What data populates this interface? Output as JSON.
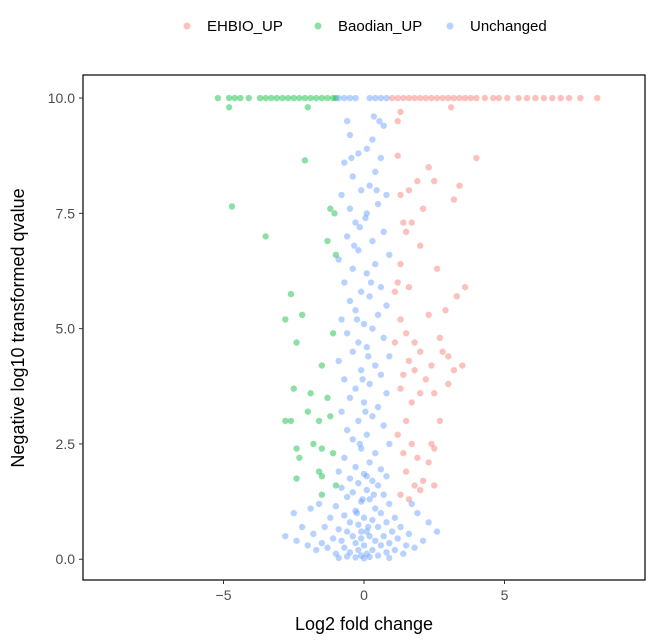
{
  "chart_data": {
    "type": "scatter",
    "title": "",
    "xlabel": "Log2 fold change",
    "ylabel": "Negative log10 transformed qvalue",
    "xlim": [
      -10,
      10
    ],
    "ylim": [
      -0.45,
      10.5
    ],
    "xticks": [
      -5,
      0,
      5
    ],
    "xtick_labels": [
      "−5",
      "0",
      "5"
    ],
    "yticks": [
      0,
      2.5,
      5,
      7.5,
      10
    ],
    "ytick_labels": [
      "0.0",
      "2.5",
      "5.0",
      "7.5",
      "10.0"
    ],
    "grid": false,
    "legend_position": "top",
    "series": [
      {
        "name": "EHBIO_UP",
        "color": "#F8766D",
        "points": [
          [
            1.0,
            10
          ],
          [
            1.2,
            10
          ],
          [
            1.4,
            10
          ],
          [
            1.6,
            10
          ],
          [
            1.8,
            10
          ],
          [
            2.0,
            10
          ],
          [
            2.2,
            10
          ],
          [
            2.4,
            10
          ],
          [
            2.6,
            10
          ],
          [
            2.8,
            10
          ],
          [
            3.0,
            10
          ],
          [
            3.2,
            10
          ],
          [
            3.4,
            10
          ],
          [
            3.6,
            10
          ],
          [
            3.8,
            10
          ],
          [
            4.0,
            10
          ],
          [
            4.3,
            10
          ],
          [
            4.6,
            10
          ],
          [
            4.8,
            10
          ],
          [
            5.1,
            10
          ],
          [
            5.5,
            10
          ],
          [
            5.8,
            10
          ],
          [
            6.1,
            10
          ],
          [
            6.4,
            10
          ],
          [
            6.7,
            10
          ],
          [
            7.0,
            10
          ],
          [
            7.3,
            10
          ],
          [
            7.7,
            10
          ],
          [
            8.3,
            10
          ],
          [
            1.3,
            9.7
          ],
          [
            3.1,
            9.8
          ],
          [
            1.2,
            9.5
          ],
          [
            4,
            8.7
          ],
          [
            1.2,
            8.75
          ],
          [
            2.3,
            8.5
          ],
          [
            1.9,
            8.2
          ],
          [
            3.4,
            8.1
          ],
          [
            2.5,
            8.2
          ],
          [
            1.6,
            8.0
          ],
          [
            1.3,
            7.9
          ],
          [
            3.2,
            7.8
          ],
          [
            1.4,
            7.3
          ],
          [
            2.1,
            7.6
          ],
          [
            1.7,
            7.3
          ],
          [
            1.5,
            7.1
          ],
          [
            2,
            6.8
          ],
          [
            1.3,
            6.4
          ],
          [
            2.6,
            6.3
          ],
          [
            1.2,
            6.0
          ],
          [
            1.6,
            5.9
          ],
          [
            3.6,
            5.9
          ],
          [
            3.3,
            5.7
          ],
          [
            2.9,
            5.4
          ],
          [
            1.1,
            5.8
          ],
          [
            1.3,
            5.2
          ],
          [
            2.3,
            5.3
          ],
          [
            1.5,
            4.9
          ],
          [
            2.7,
            4.8
          ],
          [
            1.1,
            4.7
          ],
          [
            1.8,
            4.7
          ],
          [
            2.0,
            4.5
          ],
          [
            2.8,
            4.5
          ],
          [
            3.0,
            4.4
          ],
          [
            3.5,
            4.2
          ],
          [
            1.6,
            4.3
          ],
          [
            1.8,
            4.1
          ],
          [
            2.4,
            4.2
          ],
          [
            1.4,
            4.0
          ],
          [
            2.2,
            3.9
          ],
          [
            3.2,
            4.1
          ],
          [
            1.3,
            3.7
          ],
          [
            2.5,
            3.6
          ],
          [
            2.0,
            3.6
          ],
          [
            1.7,
            3.4
          ],
          [
            3.0,
            3.8
          ],
          [
            1.5,
            3.0
          ],
          [
            2.7,
            3.0
          ],
          [
            1.2,
            2.7
          ],
          [
            2.4,
            2.5
          ],
          [
            1.7,
            2.5
          ],
          [
            1.4,
            2.3
          ],
          [
            2.5,
            2.4
          ],
          [
            1.9,
            2.2
          ],
          [
            2.3,
            2.1
          ],
          [
            1.5,
            1.9
          ],
          [
            2.1,
            1.7
          ],
          [
            1.8,
            1.6
          ],
          [
            1.3,
            1.4
          ],
          [
            2.5,
            1.6
          ],
          [
            1.6,
            1.3
          ],
          [
            2.0,
            1.5
          ]
        ]
      },
      {
        "name": "Baodian_UP",
        "color": "#00BA38",
        "points": [
          [
            -5.2,
            10
          ],
          [
            -4.8,
            10
          ],
          [
            -4.6,
            10
          ],
          [
            -4.4,
            10
          ],
          [
            -4.1,
            10
          ],
          [
            -3.7,
            10
          ],
          [
            -3.5,
            10
          ],
          [
            -3.3,
            10
          ],
          [
            -3.1,
            10
          ],
          [
            -2.9,
            10
          ],
          [
            -2.7,
            10
          ],
          [
            -2.5,
            10
          ],
          [
            -2.3,
            10
          ],
          [
            -2.1,
            10
          ],
          [
            -1.9,
            10
          ],
          [
            -1.7,
            10
          ],
          [
            -1.5,
            10
          ],
          [
            -1.3,
            10
          ],
          [
            -1.1,
            10
          ],
          [
            -1.0,
            10
          ],
          [
            -4.8,
            9.8
          ],
          [
            -2,
            9.8
          ],
          [
            -2.1,
            8.65
          ],
          [
            -4.7,
            7.65
          ],
          [
            -3.5,
            7.0
          ],
          [
            -1.2,
            7.6
          ],
          [
            -1.05,
            7.5
          ],
          [
            -1,
            6.6
          ],
          [
            -1.3,
            6.9
          ],
          [
            -2.6,
            5.75
          ],
          [
            -2.2,
            5.3
          ],
          [
            -2.8,
            5.2
          ],
          [
            -2.4,
            4.7
          ],
          [
            -1.1,
            4.9
          ],
          [
            -1.5,
            4.2
          ],
          [
            -2.5,
            3.7
          ],
          [
            -1.9,
            3.6
          ],
          [
            -1.3,
            3.5
          ],
          [
            -2,
            3.2
          ],
          [
            -2.8,
            3.0
          ],
          [
            -2.6,
            3.0
          ],
          [
            -1.6,
            3.0
          ],
          [
            -1.2,
            3.1
          ],
          [
            -1.8,
            2.5
          ],
          [
            -2.4,
            2.4
          ],
          [
            -1.5,
            2.4
          ],
          [
            -2.3,
            2.2
          ],
          [
            -1.1,
            2.3
          ],
          [
            -2.4,
            1.75
          ],
          [
            -1.6,
            1.9
          ],
          [
            -1.5,
            1.8
          ],
          [
            -1.5,
            1.4
          ],
          [
            -1.0,
            1.6
          ]
        ]
      },
      {
        "name": "Unchanged",
        "color": "#619CFF",
        "points": [
          [
            -0.9,
            10
          ],
          [
            -0.7,
            10
          ],
          [
            -0.5,
            10
          ],
          [
            -0.3,
            10
          ],
          [
            0.2,
            10
          ],
          [
            0.4,
            10
          ],
          [
            0.6,
            10
          ],
          [
            0.8,
            10
          ],
          [
            0.35,
            9.6
          ],
          [
            0.55,
            9.5
          ],
          [
            0.7,
            9.4
          ],
          [
            -0.6,
            9.5
          ],
          [
            -0.5,
            9.2
          ],
          [
            0.3,
            9.1
          ],
          [
            0.1,
            8.9
          ],
          [
            -0.2,
            8.8
          ],
          [
            0.6,
            8.7
          ],
          [
            -0.7,
            8.6
          ],
          [
            0.4,
            8.4
          ],
          [
            -0.4,
            8.3
          ],
          [
            0.2,
            8.1
          ],
          [
            -0.1,
            8.0
          ],
          [
            0.8,
            7.9
          ],
          [
            -0.8,
            7.9
          ],
          [
            0.5,
            7.7
          ],
          [
            -0.5,
            7.6
          ],
          [
            0.1,
            7.5
          ],
          [
            -0.3,
            7.3
          ],
          [
            -0.15,
            7.2
          ],
          [
            0.7,
            7.1
          ],
          [
            -0.6,
            7.0
          ],
          [
            0.3,
            6.9
          ],
          [
            -0.2,
            6.7
          ],
          [
            0.9,
            6.6
          ],
          [
            -0.9,
            6.5
          ],
          [
            0.4,
            6.4
          ],
          [
            -0.4,
            6.3
          ],
          [
            0.1,
            6.2
          ],
          [
            -0.7,
            6.0
          ],
          [
            0.6,
            5.9
          ],
          [
            -0.1,
            5.8
          ],
          [
            0.2,
            5.7
          ],
          [
            -0.5,
            5.6
          ],
          [
            0.8,
            5.5
          ],
          [
            -0.3,
            5.4
          ],
          [
            0.5,
            5.3
          ],
          [
            -0.8,
            5.2
          ],
          [
            0.0,
            5.1
          ],
          [
            0.3,
            5.0
          ],
          [
            -0.6,
            4.9
          ],
          [
            0.7,
            4.8
          ],
          [
            -0.2,
            4.7
          ],
          [
            0.1,
            4.6
          ],
          [
            -0.4,
            4.5
          ],
          [
            0.9,
            4.4
          ],
          [
            -0.9,
            4.3
          ],
          [
            0.4,
            4.2
          ],
          [
            -0.1,
            4.1
          ],
          [
            0.6,
            4.0
          ],
          [
            -0.7,
            3.9
          ],
          [
            0.2,
            3.8
          ],
          [
            -0.3,
            3.7
          ],
          [
            0.8,
            3.6
          ],
          [
            -0.5,
            3.5
          ],
          [
            0.0,
            3.4
          ],
          [
            0.5,
            3.3
          ],
          [
            -0.8,
            3.2
          ],
          [
            0.3,
            3.1
          ],
          [
            -0.2,
            3.0
          ],
          [
            0.7,
            2.9
          ],
          [
            -0.6,
            2.8
          ],
          [
            0.1,
            2.7
          ],
          [
            -0.4,
            2.6
          ],
          [
            0.9,
            2.5
          ],
          [
            -0.1,
            2.4
          ],
          [
            0.4,
            2.3
          ],
          [
            -0.7,
            2.2
          ],
          [
            0.2,
            2.1
          ],
          [
            -0.3,
            2.0
          ],
          [
            0.6,
            1.95
          ],
          [
            -0.9,
            1.9
          ],
          [
            0.0,
            1.85
          ],
          [
            0.8,
            1.8
          ],
          [
            -0.5,
            1.75
          ],
          [
            0.3,
            1.7
          ],
          [
            -0.2,
            1.65
          ],
          [
            0.5,
            1.6
          ],
          [
            -0.8,
            1.55
          ],
          [
            0.1,
            1.5
          ],
          [
            -0.4,
            1.45
          ],
          [
            0.7,
            1.4
          ],
          [
            -0.6,
            1.35
          ],
          [
            0.2,
            1.3
          ],
          [
            -0.1,
            1.25
          ],
          [
            0.9,
            1.2
          ],
          [
            -1.0,
            1.15
          ],
          [
            0.4,
            1.1
          ],
          [
            -0.3,
            1.05
          ],
          [
            0.6,
            1.0
          ],
          [
            -0.7,
            0.95
          ],
          [
            0.0,
            0.9
          ],
          [
            -1.2,
            0.9
          ],
          [
            1.1,
            0.9
          ],
          [
            0.3,
            0.85
          ],
          [
            -0.5,
            0.8
          ],
          [
            0.8,
            0.8
          ],
          [
            -0.2,
            0.75
          ],
          [
            1.3,
            0.7
          ],
          [
            -1.4,
            0.7
          ],
          [
            0.5,
            0.7
          ],
          [
            -0.9,
            0.65
          ],
          [
            0.1,
            0.6
          ],
          [
            -0.6,
            0.6
          ],
          [
            1.0,
            0.6
          ],
          [
            -1.8,
            0.55
          ],
          [
            1.6,
            0.55
          ],
          [
            0.2,
            0.5
          ],
          [
            -0.4,
            0.5
          ],
          [
            0.7,
            0.5
          ],
          [
            -1.1,
            0.45
          ],
          [
            -0.1,
            0.45
          ],
          [
            1.2,
            0.45
          ],
          [
            -2.4,
            0.4
          ],
          [
            0.4,
            0.4
          ],
          [
            -0.8,
            0.4
          ],
          [
            2.1,
            0.4
          ],
          [
            -1.5,
            0.35
          ],
          [
            0.9,
            0.35
          ],
          [
            -0.3,
            0.35
          ],
          [
            1.5,
            0.3
          ],
          [
            -2.0,
            0.3
          ],
          [
            0.0,
            0.3
          ],
          [
            0.6,
            0.3
          ],
          [
            -0.7,
            0.25
          ],
          [
            1.8,
            0.25
          ],
          [
            -1.3,
            0.25
          ],
          [
            0.3,
            0.2
          ],
          [
            -0.2,
            0.2
          ],
          [
            1.1,
            0.2
          ],
          [
            -1.7,
            0.2
          ],
          [
            -0.5,
            0.15
          ],
          [
            0.8,
            0.15
          ],
          [
            0.1,
            0.12
          ],
          [
            -1.0,
            0.12
          ],
          [
            1.4,
            0.12
          ],
          [
            -0.1,
            0.08
          ],
          [
            0.5,
            0.08
          ],
          [
            -0.6,
            0.06
          ],
          [
            0.2,
            0.05
          ],
          [
            -0.3,
            0.04
          ],
          [
            0.0,
            0.02
          ],
          [
            0.9,
            0.03
          ],
          [
            -0.9,
            0.03
          ],
          [
            -2.5,
            1.0
          ],
          [
            -1.9,
            1.1
          ],
          [
            1.9,
            1.0
          ],
          [
            2.3,
            0.8
          ],
          [
            -2.2,
            0.7
          ],
          [
            2.6,
            0.6
          ],
          [
            -2.8,
            0.5
          ],
          [
            1.7,
            1.2
          ],
          [
            -1.6,
            1.2
          ],
          [
            -0.05,
            3.9
          ],
          [
            0.15,
            4.4
          ],
          [
            -0.25,
            5.2
          ],
          [
            0.25,
            6.0
          ],
          [
            -0.35,
            6.8
          ],
          [
            0.05,
            7.4
          ],
          [
            0.45,
            8.0
          ],
          [
            -0.45,
            8.7
          ],
          [
            -0.1,
            0.6
          ],
          [
            0.1,
            1.8
          ],
          [
            -0.15,
            2.5
          ],
          [
            0.05,
            3.2
          ],
          [
            -0.05,
            1.3
          ],
          [
            0.15,
            0.7
          ],
          [
            -0.25,
            1.0
          ],
          [
            0.35,
            1.4
          ]
        ]
      }
    ]
  }
}
